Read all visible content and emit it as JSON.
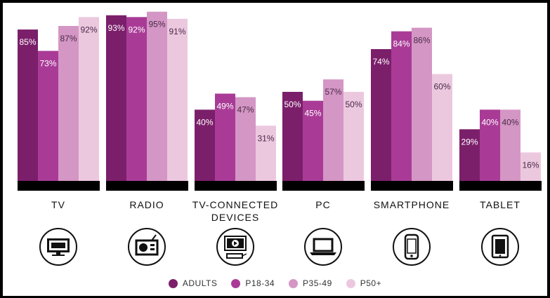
{
  "chart_data": {
    "type": "bar",
    "categories": [
      "TV",
      "RADIO",
      "TV-CONNECTED DEVICES",
      "PC",
      "SMARTPHONE",
      "TABLET"
    ],
    "category_icons": [
      "tv-icon",
      "radio-icon",
      "tv-connected-device-icon",
      "laptop-icon",
      "smartphone-icon",
      "tablet-icon"
    ],
    "series": [
      {
        "name": "ADULTS",
        "color": "#7b1f6a",
        "values": [
          85,
          93,
          40,
          50,
          74,
          29
        ],
        "labels": [
          "85%",
          "93%",
          "40%",
          "50%",
          "74%",
          "29%"
        ]
      },
      {
        "name": "P18-34",
        "color": "#a93b97",
        "values": [
          73,
          92,
          49,
          45,
          84,
          40
        ],
        "labels": [
          "73%",
          "92%",
          "49%",
          "45%",
          "84%",
          "40%"
        ]
      },
      {
        "name": "P35-49",
        "color": "#d496c4",
        "values": [
          87,
          95,
          47,
          57,
          86,
          40
        ],
        "labels": [
          "87%",
          "95%",
          "47%",
          "57%",
          "86%",
          "40%"
        ]
      },
      {
        "name": "P50+",
        "color": "#ecc8df",
        "values": [
          92,
          91,
          31,
          50,
          60,
          16
        ],
        "labels": [
          "92%",
          "91%",
          "31%",
          "50%",
          "60%",
          "16%"
        ]
      }
    ],
    "ylim": [
      0,
      100
    ],
    "legend_position": "bottom-center",
    "grid": false,
    "baseline_color": "#000000"
  }
}
